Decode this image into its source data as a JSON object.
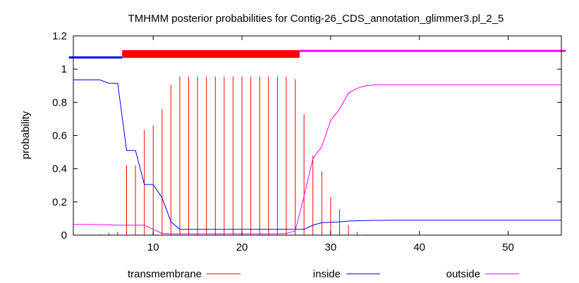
{
  "chart_data": {
    "type": "line",
    "title": "TMHMM posterior probabilities for Contig-26_CDS_annotation_glimmer3.pl_2_5",
    "xlabel": "",
    "ylabel": "probability",
    "xlim": [
      1,
      56
    ],
    "ylim": [
      0,
      1.2
    ],
    "xticks": [
      10,
      20,
      30,
      40,
      50
    ],
    "yticks": [
      0,
      0.2,
      0.4,
      0.6,
      0.8,
      1,
      1.2
    ],
    "ytick_labels": [
      "0",
      "0.2",
      "0.4",
      "0.6",
      "0.8",
      "1",
      "1.2"
    ],
    "grid": false,
    "legend_position": "bottom",
    "colors": {
      "transmembrane": "#ff0000",
      "inside": "#0000ff",
      "outside": "#ff00ff"
    },
    "topology": [
      {
        "region": "inside",
        "start": 1,
        "end": 6
      },
      {
        "region": "transmembrane",
        "start": 7,
        "end": 26
      },
      {
        "region": "outside",
        "start": 27,
        "end": 56
      }
    ],
    "series": [
      {
        "name": "transmembrane",
        "style": "impulses",
        "x": [
          1,
          2,
          3,
          4,
          5,
          6,
          7,
          8,
          9,
          10,
          11,
          12,
          13,
          14,
          15,
          16,
          17,
          18,
          19,
          20,
          21,
          22,
          23,
          24,
          25,
          26,
          27,
          28,
          29,
          30,
          31,
          32,
          33,
          34,
          35,
          36
        ],
        "values": [
          0,
          0,
          0,
          0.005,
          0.015,
          0.02,
          0.42,
          0.42,
          0.635,
          0.66,
          0.76,
          0.905,
          0.955,
          0.955,
          0.955,
          0.955,
          0.955,
          0.955,
          0.955,
          0.955,
          0.955,
          0.955,
          0.955,
          0.955,
          0.955,
          0.94,
          0.73,
          0.48,
          0.385,
          0.23,
          0.155,
          0.06,
          0.02,
          0.005,
          0,
          0
        ]
      },
      {
        "name": "inside",
        "style": "line",
        "x": [
          1,
          2,
          3,
          4,
          5,
          6,
          7,
          8,
          9,
          10,
          11,
          12,
          13,
          14,
          15,
          16,
          17,
          18,
          19,
          20,
          21,
          22,
          23,
          24,
          25,
          26,
          27,
          28,
          29,
          30,
          31,
          32,
          33,
          34,
          35,
          36,
          37,
          38,
          39,
          40,
          45,
          50,
          56
        ],
        "values": [
          0.935,
          0.935,
          0.935,
          0.935,
          0.915,
          0.915,
          0.51,
          0.51,
          0.305,
          0.305,
          0.225,
          0.08,
          0.035,
          0.035,
          0.035,
          0.035,
          0.035,
          0.035,
          0.035,
          0.035,
          0.035,
          0.035,
          0.035,
          0.035,
          0.035,
          0.035,
          0.035,
          0.06,
          0.075,
          0.077,
          0.08,
          0.085,
          0.087,
          0.088,
          0.089,
          0.089,
          0.09,
          0.09,
          0.09,
          0.09,
          0.09,
          0.09,
          0.09
        ]
      },
      {
        "name": "outside",
        "style": "line",
        "x": [
          1,
          2,
          3,
          4,
          5,
          6,
          7,
          8,
          9,
          10,
          11,
          12,
          13,
          14,
          15,
          16,
          17,
          18,
          19,
          20,
          21,
          22,
          23,
          24,
          25,
          26,
          27,
          28,
          29,
          30,
          31,
          32,
          33,
          34,
          35,
          36,
          37,
          38,
          39,
          40,
          45,
          50,
          56
        ],
        "values": [
          0.065,
          0.065,
          0.065,
          0.063,
          0.062,
          0.06,
          0.06,
          0.06,
          0.06,
          0.035,
          0.01,
          0.008,
          0.008,
          0.008,
          0.008,
          0.008,
          0.008,
          0.008,
          0.008,
          0.008,
          0.008,
          0.008,
          0.008,
          0.008,
          0.01,
          0.025,
          0.235,
          0.46,
          0.535,
          0.69,
          0.76,
          0.855,
          0.885,
          0.9,
          0.905,
          0.905,
          0.905,
          0.905,
          0.905,
          0.905,
          0.905,
          0.905,
          0.905
        ]
      }
    ]
  }
}
